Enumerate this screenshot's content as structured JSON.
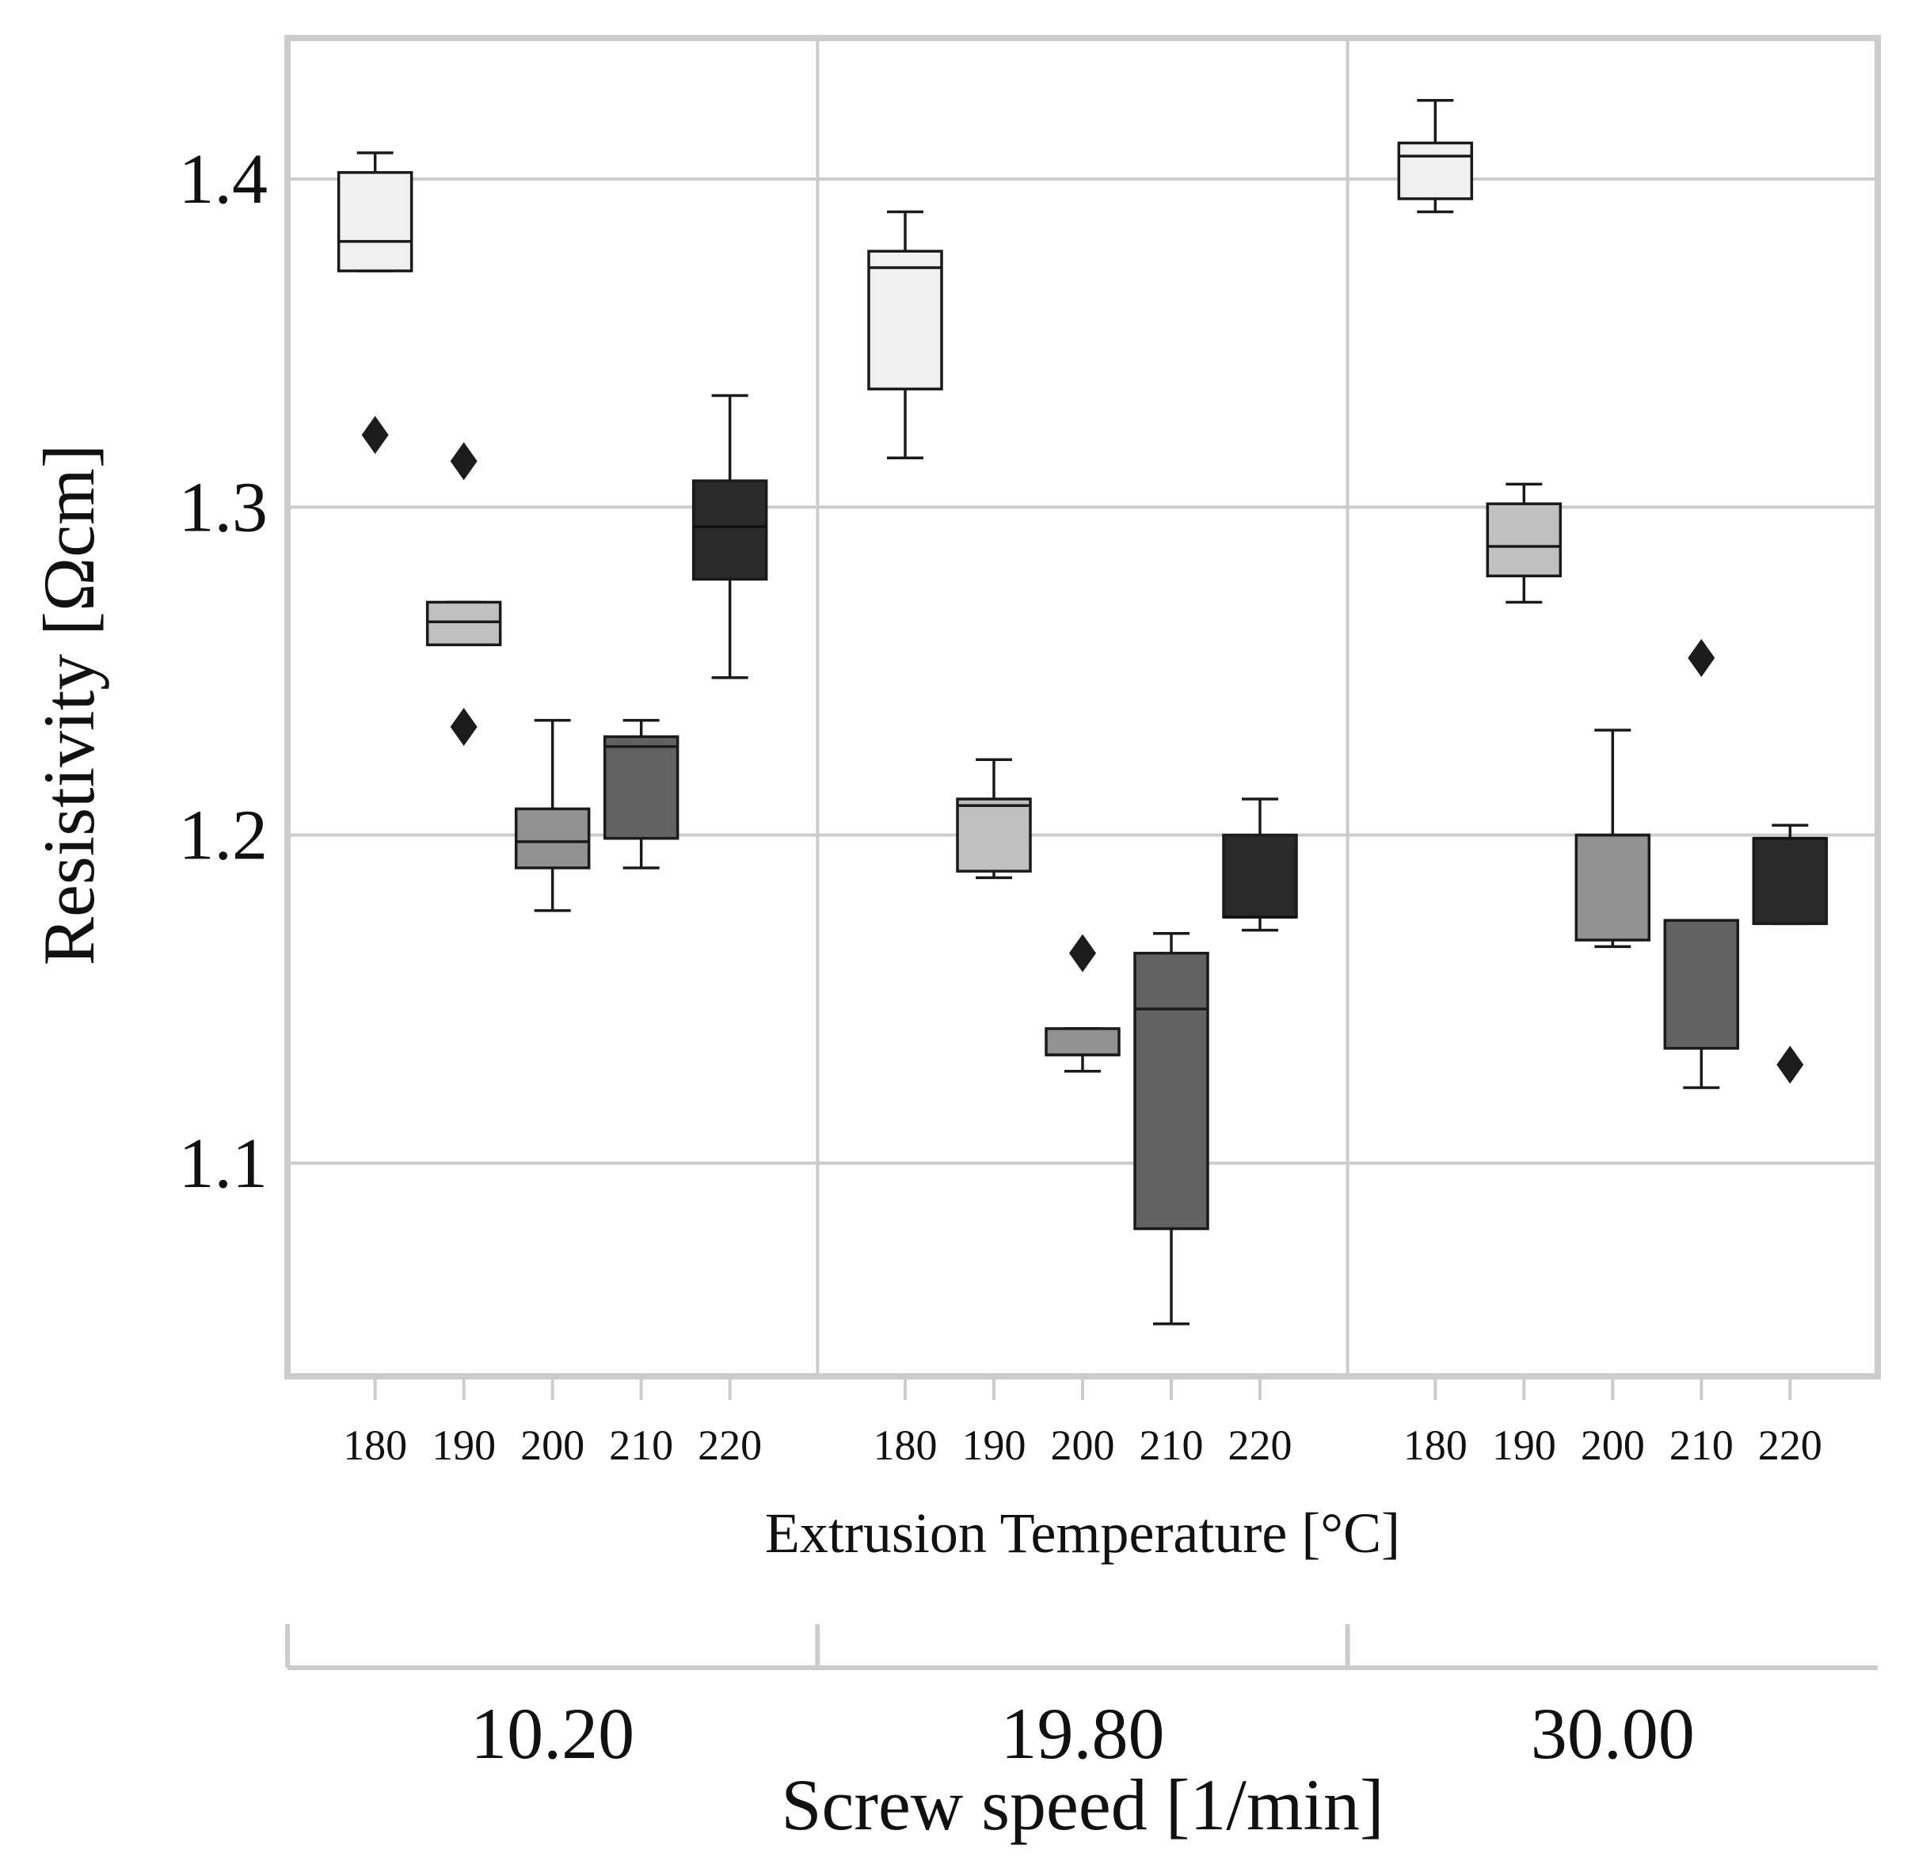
{
  "chart_data": {
    "type": "boxplot",
    "ylabel": "Resistivity [Ωcm]",
    "xlabel": "Extrusion Temperature [°C]",
    "group_axis_label": "Screw speed [1/min]",
    "ylim": [
      1.035,
      1.443
    ],
    "yticks": [
      1.1,
      1.2,
      1.3,
      1.4
    ],
    "ytick_labels": [
      "1.1",
      "1.2",
      "1.3",
      "1.4"
    ],
    "grid": true,
    "categories": [
      "180",
      "190",
      "200",
      "210",
      "220"
    ],
    "category_colors": [
      "#f0f0f0",
      "#c0c0c0",
      "#919191",
      "#626262",
      "#2a2a2a"
    ],
    "groups": [
      {
        "label": "10.20",
        "boxes": [
          {
            "temp": "180",
            "whislo": 1.372,
            "q1": 1.372,
            "med": 1.381,
            "q3": 1.402,
            "whishi": 1.408,
            "fliers": [
              1.322
            ]
          },
          {
            "temp": "190",
            "whislo": 1.258,
            "q1": 1.258,
            "med": 1.265,
            "q3": 1.271,
            "whishi": 1.271,
            "fliers": [
              1.314,
              1.233
            ]
          },
          {
            "temp": "200",
            "whislo": 1.177,
            "q1": 1.19,
            "med": 1.198,
            "q3": 1.208,
            "whishi": 1.235,
            "fliers": []
          },
          {
            "temp": "210",
            "whislo": 1.19,
            "q1": 1.199,
            "med": 1.227,
            "q3": 1.23,
            "whishi": 1.235,
            "fliers": []
          },
          {
            "temp": "220",
            "whislo": 1.248,
            "q1": 1.278,
            "med": 1.294,
            "q3": 1.308,
            "whishi": 1.334,
            "fliers": []
          }
        ]
      },
      {
        "label": "19.80",
        "boxes": [
          {
            "temp": "180",
            "whislo": 1.315,
            "q1": 1.336,
            "med": 1.373,
            "q3": 1.378,
            "whishi": 1.39,
            "fliers": []
          },
          {
            "temp": "190",
            "whislo": 1.187,
            "q1": 1.189,
            "med": 1.209,
            "q3": 1.211,
            "whishi": 1.223,
            "fliers": []
          },
          {
            "temp": "200",
            "whislo": 1.128,
            "q1": 1.133,
            "med": 1.133,
            "q3": 1.141,
            "whishi": 1.141,
            "fliers": [
              1.164
            ]
          },
          {
            "temp": "210",
            "whislo": 1.051,
            "q1": 1.08,
            "med": 1.147,
            "q3": 1.164,
            "whishi": 1.17,
            "fliers": []
          },
          {
            "temp": "220",
            "whislo": 1.171,
            "q1": 1.175,
            "med": 1.175,
            "q3": 1.2,
            "whishi": 1.211,
            "fliers": []
          }
        ]
      },
      {
        "label": "30.00",
        "boxes": [
          {
            "temp": "180",
            "whislo": 1.39,
            "q1": 1.394,
            "med": 1.407,
            "q3": 1.411,
            "whishi": 1.424,
            "fliers": []
          },
          {
            "temp": "190",
            "whislo": 1.271,
            "q1": 1.279,
            "med": 1.288,
            "q3": 1.301,
            "whishi": 1.307,
            "fliers": []
          },
          {
            "temp": "200",
            "whislo": 1.166,
            "q1": 1.168,
            "med": 1.2,
            "q3": 1.2,
            "whishi": 1.232,
            "fliers": []
          },
          {
            "temp": "210",
            "whislo": 1.123,
            "q1": 1.135,
            "med": 1.174,
            "q3": 1.174,
            "whishi": 1.174,
            "fliers": [
              1.254
            ]
          },
          {
            "temp": "220",
            "whislo": 1.173,
            "q1": 1.173,
            "med": 1.199,
            "q3": 1.199,
            "whishi": 1.203,
            "fliers": [
              1.13
            ]
          }
        ]
      }
    ]
  }
}
